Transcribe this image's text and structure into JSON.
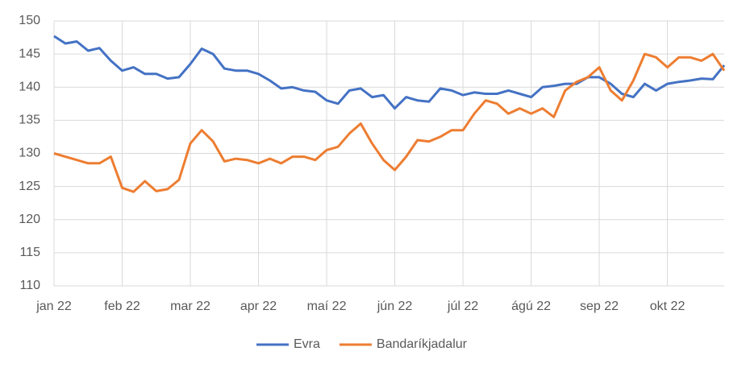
{
  "chart_data": {
    "type": "line",
    "categories": [
      "jan 22",
      null,
      null,
      null,
      null,
      null,
      "feb 22",
      null,
      null,
      null,
      null,
      null,
      "mar 22",
      null,
      null,
      null,
      null,
      null,
      "apr 22",
      null,
      null,
      null,
      null,
      null,
      "maí 22",
      null,
      null,
      null,
      null,
      null,
      "jún 22",
      null,
      null,
      null,
      null,
      null,
      "júl 22",
      null,
      null,
      null,
      null,
      null,
      "ágú 22",
      null,
      null,
      null,
      null,
      null,
      "sep 22",
      null,
      null,
      null,
      null,
      null,
      "okt 22",
      null,
      null,
      null,
      null,
      null
    ],
    "series": [
      {
        "name": "Evra",
        "color": "#4472c4",
        "values": [
          147.7,
          146.6,
          146.9,
          145.5,
          145.9,
          144.0,
          142.5,
          143.0,
          142.0,
          142.0,
          141.3,
          141.5,
          143.5,
          145.8,
          145.0,
          142.8,
          142.5,
          142.5,
          142.0,
          141.0,
          139.8,
          140.0,
          139.5,
          139.3,
          138.0,
          137.5,
          139.5,
          139.8,
          138.5,
          138.8,
          136.8,
          138.5,
          138.0,
          137.8,
          139.8,
          139.5,
          138.8,
          139.2,
          139.0,
          139.0,
          139.5,
          139.0,
          138.5,
          140.0,
          140.2,
          140.5,
          140.5,
          141.5,
          141.5,
          140.5,
          139.0,
          138.5,
          140.5,
          139.5,
          140.5,
          140.8,
          141.0,
          141.3,
          141.2,
          143.3
        ]
      },
      {
        "name": "Bandaríkjadalur",
        "color": "#ed7d31",
        "values": [
          130.0,
          129.5,
          129.0,
          128.5,
          128.5,
          129.5,
          124.8,
          124.2,
          125.8,
          124.3,
          124.6,
          126.0,
          131.5,
          133.5,
          131.8,
          128.8,
          129.2,
          129.0,
          128.5,
          129.2,
          128.5,
          129.5,
          129.5,
          129.0,
          130.5,
          131.0,
          133.0,
          134.5,
          131.5,
          129.0,
          127.5,
          129.5,
          132.0,
          131.8,
          132.5,
          133.5,
          133.5,
          136.0,
          138.0,
          137.5,
          136.0,
          136.8,
          136.0,
          136.8,
          135.5,
          139.5,
          140.8,
          141.5,
          143.0,
          139.5,
          138.0,
          141.0,
          145.0,
          144.5,
          143.0,
          144.5,
          144.5,
          144.0,
          145.0,
          142.5
        ]
      }
    ],
    "ylim": [
      110,
      150
    ],
    "yticks": [
      110,
      115,
      120,
      125,
      130,
      135,
      140,
      145,
      150
    ],
    "grid": true,
    "legend": "bottom"
  }
}
